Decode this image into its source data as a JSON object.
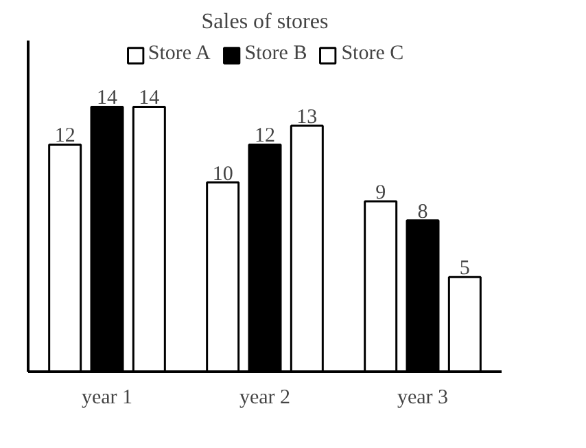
{
  "chart_data": {
    "type": "bar",
    "title": "Sales of stores",
    "categories": [
      "year 1",
      "year 2",
      "year 3"
    ],
    "series": [
      {
        "name": "Store A",
        "color": "#ffffff",
        "values": [
          12,
          10,
          9
        ]
      },
      {
        "name": "Store B",
        "color": "#000000",
        "values": [
          14,
          12,
          8
        ]
      },
      {
        "name": "Store C",
        "color": "#ffffff",
        "values": [
          14,
          13,
          5
        ]
      }
    ],
    "data_labels": true,
    "legend": "top",
    "grid": false
  }
}
